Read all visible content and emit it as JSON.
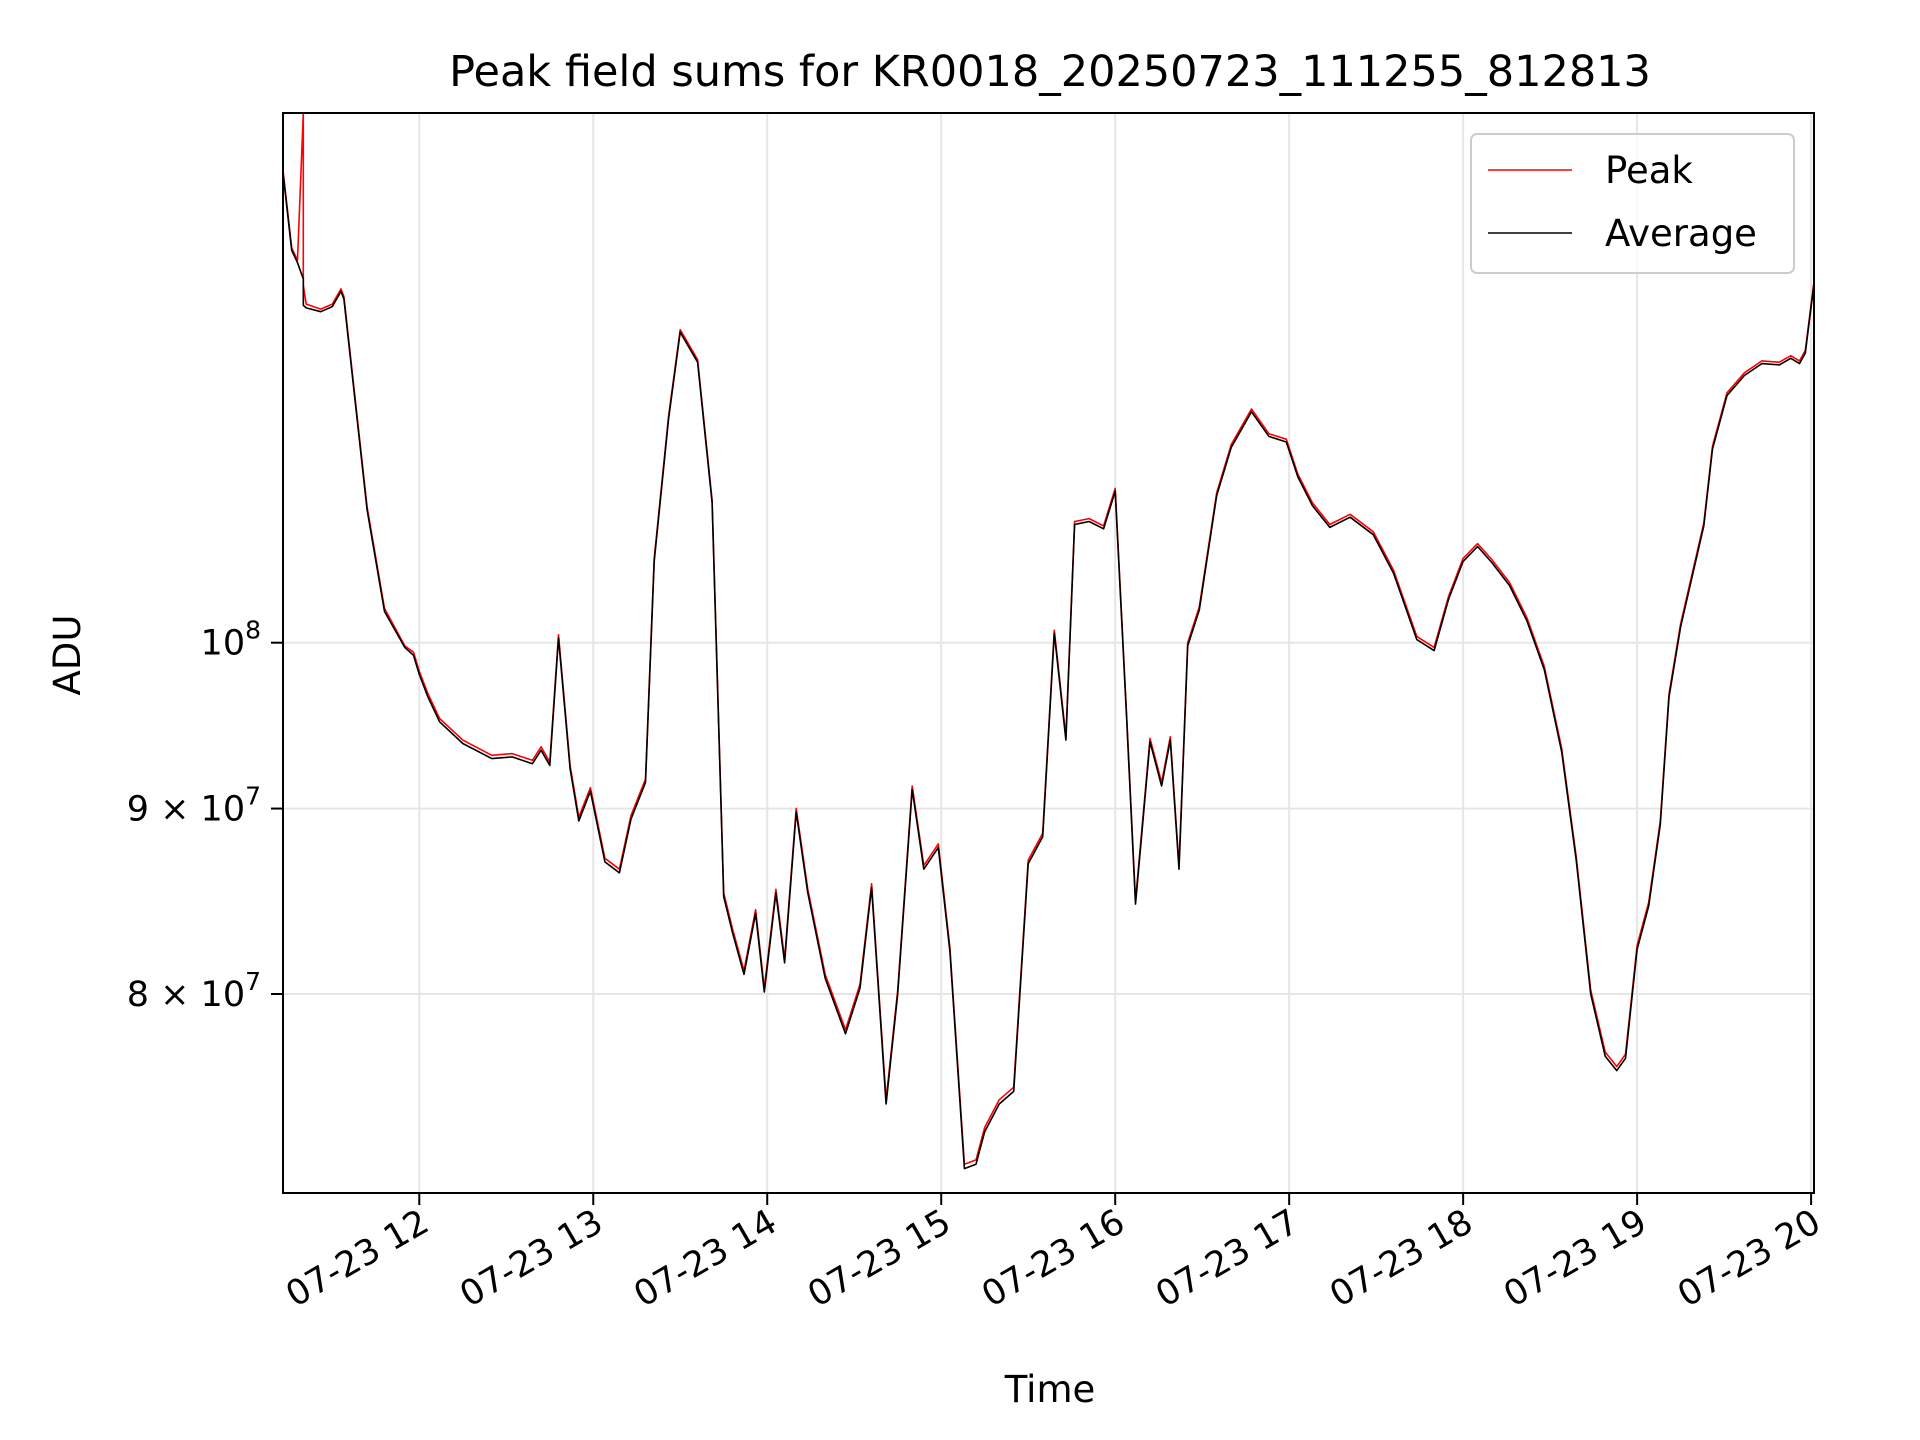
{
  "chart_data": {
    "type": "line",
    "title": "Peak field sums for KR0018_20250723_111255_812813",
    "xlabel": "Time",
    "ylabel": "ADU",
    "x_range": [
      "2025-07-23T11:13",
      "2025-07-23T20:01"
    ],
    "ylim": [
      70500000,
      140000000
    ],
    "y_scale": "log",
    "grid": true,
    "legend_position": "top-right",
    "x_ticks": [
      {
        "label": "07-23 12",
        "time": "2025-07-23T12:00"
      },
      {
        "label": "07-23 13",
        "time": "2025-07-23T13:00"
      },
      {
        "label": "07-23 14",
        "time": "2025-07-23T14:00"
      },
      {
        "label": "07-23 15",
        "time": "2025-07-23T15:00"
      },
      {
        "label": "07-23 16",
        "time": "2025-07-23T16:00"
      },
      {
        "label": "07-23 17",
        "time": "2025-07-23T17:00"
      },
      {
        "label": "07-23 18",
        "time": "2025-07-23T18:00"
      },
      {
        "label": "07-23 19",
        "time": "2025-07-23T19:00"
      },
      {
        "label": "07-23 20",
        "time": "2025-07-23T20:00"
      }
    ],
    "y_ticks": [
      {
        "value": 100000000,
        "base": "10",
        "exp": "8"
      },
      {
        "value": 90000000,
        "base": "9 × 10",
        "exp": "7"
      },
      {
        "value": 80000000,
        "base": "8 × 10",
        "exp": "7"
      }
    ],
    "series": [
      {
        "name": "Peak",
        "color": "#ff0000",
        "x": [
          "2025-07-23T11:13",
          "2025-07-23T11:16",
          "2025-07-23T11:18",
          "2025-07-23T11:20",
          "2025-07-23T11:20",
          "2025-07-23T11:20",
          "2025-07-23T11:20",
          "2025-07-23T11:21",
          "2025-07-23T11:26",
          "2025-07-23T11:30",
          "2025-07-23T11:33",
          "2025-07-23T11:34",
          "2025-07-23T11:37",
          "2025-07-23T11:42",
          "2025-07-23T11:48",
          "2025-07-23T11:55",
          "2025-07-23T11:58",
          "2025-07-23T12:00",
          "2025-07-23T12:03",
          "2025-07-23T12:07",
          "2025-07-23T12:15",
          "2025-07-23T12:25",
          "2025-07-23T12:32",
          "2025-07-23T12:39",
          "2025-07-23T12:42",
          "2025-07-23T12:45",
          "2025-07-23T12:48",
          "2025-07-23T12:52",
          "2025-07-23T12:55",
          "2025-07-23T12:59",
          "2025-07-23T13:04",
          "2025-07-23T13:09",
          "2025-07-23T13:13",
          "2025-07-23T13:18",
          "2025-07-23T13:21",
          "2025-07-23T13:26",
          "2025-07-23T13:30",
          "2025-07-23T13:36",
          "2025-07-23T13:41",
          "2025-07-23T13:45",
          "2025-07-23T13:48",
          "2025-07-23T13:52",
          "2025-07-23T13:56",
          "2025-07-23T13:59",
          "2025-07-23T14:03",
          "2025-07-23T14:06",
          "2025-07-23T14:10",
          "2025-07-23T14:14",
          "2025-07-23T14:20",
          "2025-07-23T14:27",
          "2025-07-23T14:32",
          "2025-07-23T14:36",
          "2025-07-23T14:41",
          "2025-07-23T14:45",
          "2025-07-23T14:50",
          "2025-07-23T14:54",
          "2025-07-23T14:59",
          "2025-07-23T15:03",
          "2025-07-23T15:08",
          "2025-07-23T15:12",
          "2025-07-23T15:15",
          "2025-07-23T15:20",
          "2025-07-23T15:25",
          "2025-07-23T15:30",
          "2025-07-23T15:35",
          "2025-07-23T15:39",
          "2025-07-23T15:43",
          "2025-07-23T15:46",
          "2025-07-23T15:51",
          "2025-07-23T15:56",
          "2025-07-23T16:00",
          "2025-07-23T16:04",
          "2025-07-23T16:07",
          "2025-07-23T16:12",
          "2025-07-23T16:16",
          "2025-07-23T16:19",
          "2025-07-23T16:22",
          "2025-07-23T16:25",
          "2025-07-23T16:29",
          "2025-07-23T16:35",
          "2025-07-23T16:40",
          "2025-07-23T16:47",
          "2025-07-23T16:53",
          "2025-07-23T16:59",
          "2025-07-23T17:03",
          "2025-07-23T17:08",
          "2025-07-23T17:14",
          "2025-07-23T17:21",
          "2025-07-23T17:29",
          "2025-07-23T17:36",
          "2025-07-23T17:44",
          "2025-07-23T17:50",
          "2025-07-23T17:55",
          "2025-07-23T18:00",
          "2025-07-23T18:05",
          "2025-07-23T18:10",
          "2025-07-23T18:16",
          "2025-07-23T18:22",
          "2025-07-23T18:28",
          "2025-07-23T18:34",
          "2025-07-23T18:39",
          "2025-07-23T18:44",
          "2025-07-23T18:49",
          "2025-07-23T18:53",
          "2025-07-23T18:56",
          "2025-07-23T19:00",
          "2025-07-23T19:04",
          "2025-07-23T19:08",
          "2025-07-23T19:11",
          "2025-07-23T19:15",
          "2025-07-23T19:19",
          "2025-07-23T19:23",
          "2025-07-23T19:26",
          "2025-07-23T19:31",
          "2025-07-23T19:37",
          "2025-07-23T19:43",
          "2025-07-23T19:49",
          "2025-07-23T19:53",
          "2025-07-23T19:56",
          "2025-07-23T19:58",
          "2025-07-23T20:01"
        ],
        "values": [
          135000000,
          128500000,
          127500000,
          140000000,
          135000000,
          124000000,
          125500000,
          124000000,
          123600000,
          124000000,
          125200000,
          124600000,
          118500000,
          109000000,
          102200000,
          99800000,
          99400000,
          98200000,
          96800000,
          95300000,
          94000000,
          93100000,
          93200000,
          92800000,
          93600000,
          92700000,
          100500000,
          92500000,
          89500000,
          91200000,
          87200000,
          86600000,
          89600000,
          91700000,
          105500000,
          115500000,
          122000000,
          119700000,
          109500000,
          85300000,
          83400000,
          81200000,
          84400000,
          80300000,
          85500000,
          81800000,
          90000000,
          85500000,
          81000000,
          78200000,
          80500000,
          85800000,
          74800000,
          80200000,
          91300000,
          86800000,
          88000000,
          82400000,
          71800000,
          72000000,
          73500000,
          74800000,
          75400000,
          87100000,
          88600000,
          100800000,
          94200000,
          108000000,
          108200000,
          107700000,
          110300000,
          95300000,
          84900000,
          94100000,
          91500000,
          94200000,
          86800000,
          100000000,
          102300000,
          110000000,
          113400000,
          116000000,
          114200000,
          113800000,
          111300000,
          109300000,
          107800000,
          108500000,
          107300000,
          104700000,
          100400000,
          99700000,
          103000000,
          105500000,
          106500000,
          105400000,
          103900000,
          101600000,
          98500000,
          93500000,
          87300000,
          80200000,
          77100000,
          76400000,
          77000000,
          82500000,
          84800000,
          89300000,
          96800000,
          101200000,
          104500000,
          107900000,
          113300000,
          117200000,
          118700000,
          119600000,
          119500000,
          120000000,
          119600000,
          120400000,
          125800000
        ]
      },
      {
        "name": "Average",
        "color": "#000000",
        "x": [
          "2025-07-23T11:13",
          "2025-07-23T11:16",
          "2025-07-23T11:18",
          "2025-07-23T11:20",
          "2025-07-23T11:20",
          "2025-07-23T11:21",
          "2025-07-23T11:26",
          "2025-07-23T11:30",
          "2025-07-23T11:33",
          "2025-07-23T11:34",
          "2025-07-23T11:37",
          "2025-07-23T11:42",
          "2025-07-23T11:48",
          "2025-07-23T11:55",
          "2025-07-23T11:58",
          "2025-07-23T12:00",
          "2025-07-23T12:03",
          "2025-07-23T12:07",
          "2025-07-23T12:15",
          "2025-07-23T12:25",
          "2025-07-23T12:32",
          "2025-07-23T12:39",
          "2025-07-23T12:42",
          "2025-07-23T12:45",
          "2025-07-23T12:48",
          "2025-07-23T12:52",
          "2025-07-23T12:55",
          "2025-07-23T12:59",
          "2025-07-23T13:04",
          "2025-07-23T13:09",
          "2025-07-23T13:13",
          "2025-07-23T13:18",
          "2025-07-23T13:21",
          "2025-07-23T13:26",
          "2025-07-23T13:30",
          "2025-07-23T13:36",
          "2025-07-23T13:41",
          "2025-07-23T13:45",
          "2025-07-23T13:48",
          "2025-07-23T13:52",
          "2025-07-23T13:56",
          "2025-07-23T13:59",
          "2025-07-23T14:03",
          "2025-07-23T14:06",
          "2025-07-23T14:10",
          "2025-07-23T14:14",
          "2025-07-23T14:20",
          "2025-07-23T14:27",
          "2025-07-23T14:32",
          "2025-07-23T14:36",
          "2025-07-23T14:41",
          "2025-07-23T14:45",
          "2025-07-23T14:50",
          "2025-07-23T14:54",
          "2025-07-23T14:59",
          "2025-07-23T15:03",
          "2025-07-23T15:08",
          "2025-07-23T15:12",
          "2025-07-23T15:15",
          "2025-07-23T15:20",
          "2025-07-23T15:25",
          "2025-07-23T15:30",
          "2025-07-23T15:35",
          "2025-07-23T15:39",
          "2025-07-23T15:43",
          "2025-07-23T15:46",
          "2025-07-23T15:51",
          "2025-07-23T15:56",
          "2025-07-23T16:00",
          "2025-07-23T16:04",
          "2025-07-23T16:07",
          "2025-07-23T16:12",
          "2025-07-23T16:16",
          "2025-07-23T16:19",
          "2025-07-23T16:22",
          "2025-07-23T16:25",
          "2025-07-23T16:29",
          "2025-07-23T16:35",
          "2025-07-23T16:40",
          "2025-07-23T16:47",
          "2025-07-23T16:53",
          "2025-07-23T16:59",
          "2025-07-23T17:03",
          "2025-07-23T17:08",
          "2025-07-23T17:14",
          "2025-07-23T17:21",
          "2025-07-23T17:29",
          "2025-07-23T17:36",
          "2025-07-23T17:44",
          "2025-07-23T17:50",
          "2025-07-23T17:55",
          "2025-07-23T18:00",
          "2025-07-23T18:05",
          "2025-07-23T18:10",
          "2025-07-23T18:16",
          "2025-07-23T18:22",
          "2025-07-23T18:28",
          "2025-07-23T18:34",
          "2025-07-23T18:39",
          "2025-07-23T18:44",
          "2025-07-23T18:49",
          "2025-07-23T18:53",
          "2025-07-23T18:56",
          "2025-07-23T19:00",
          "2025-07-23T19:04",
          "2025-07-23T19:08",
          "2025-07-23T19:11",
          "2025-07-23T19:15",
          "2025-07-23T19:19",
          "2025-07-23T19:23",
          "2025-07-23T19:26",
          "2025-07-23T19:31",
          "2025-07-23T19:37",
          "2025-07-23T19:43",
          "2025-07-23T19:49",
          "2025-07-23T19:53",
          "2025-07-23T19:56",
          "2025-07-23T19:58",
          "2025-07-23T20:01"
        ],
        "values": [
          134800000,
          128300000,
          127300000,
          126000000,
          123900000,
          123700000,
          123400000,
          123800000,
          125000000,
          124400000,
          118300000,
          108800000,
          102000000,
          99700000,
          99200000,
          98000000,
          96600000,
          95100000,
          93800000,
          92900000,
          93000000,
          92600000,
          93400000,
          92500000,
          100300000,
          92300000,
          89300000,
          91000000,
          87000000,
          86400000,
          89400000,
          91500000,
          105300000,
          115300000,
          121800000,
          119500000,
          109300000,
          85100000,
          83200000,
          81000000,
          84200000,
          80100000,
          85300000,
          81600000,
          89800000,
          85300000,
          80800000,
          78000000,
          80300000,
          85600000,
          74600000,
          80000000,
          91100000,
          86600000,
          87800000,
          82200000,
          71600000,
          71800000,
          73300000,
          74600000,
          75200000,
          86900000,
          88400000,
          100600000,
          94000000,
          107800000,
          108000000,
          107500000,
          110100000,
          95100000,
          84700000,
          93900000,
          91300000,
          94000000,
          86600000,
          99800000,
          102100000,
          109800000,
          113200000,
          115800000,
          114000000,
          113600000,
          111100000,
          109100000,
          107600000,
          108300000,
          107100000,
          104500000,
          100200000,
          99500000,
          102800000,
          105300000,
          106300000,
          105200000,
          103700000,
          101400000,
          98300000,
          93300000,
          87100000,
          80000000,
          76900000,
          76200000,
          76800000,
          82300000,
          84600000,
          89100000,
          96600000,
          101000000,
          104300000,
          107700000,
          113100000,
          117000000,
          118500000,
          119400000,
          119300000,
          119800000,
          119400000,
          120200000,
          125600000
        ]
      }
    ]
  }
}
